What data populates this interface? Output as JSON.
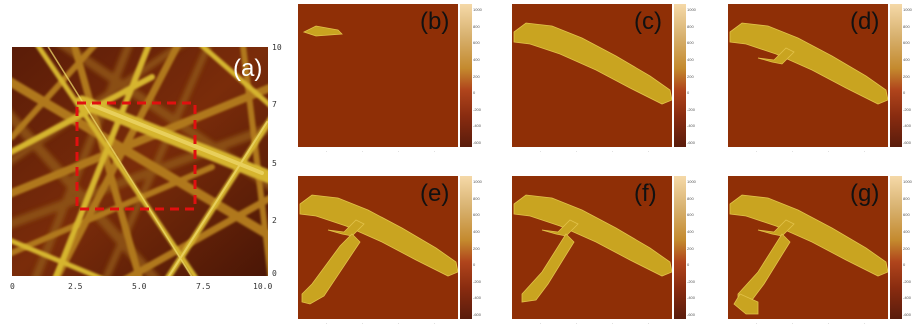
{
  "panel_a": {
    "label": "(a)",
    "x_ticks": [
      "0",
      "2.5",
      "5.0",
      "7.5",
      "10.0"
    ],
    "y_ticks": [
      "10",
      "7",
      "5",
      "2",
      "0"
    ]
  },
  "panels": [
    {
      "id": "b",
      "label": "(b)",
      "stage": 0
    },
    {
      "id": "c",
      "label": "(c)",
      "stage": 1
    },
    {
      "id": "d",
      "label": "(d)",
      "stage": 2
    },
    {
      "id": "e",
      "label": "(e)",
      "stage": 3
    },
    {
      "id": "f",
      "label": "(f)",
      "stage": 4
    },
    {
      "id": "g",
      "label": "(g)",
      "stage": 5
    }
  ],
  "colorbar_ticks": [
    "1000",
    "800",
    "600",
    "400",
    "200",
    "0",
    "-200",
    "-400",
    "-600"
  ],
  "colors": {
    "background": "#8f2f06",
    "fiber": "#c9a420",
    "fiber_edge": "#e2c24a",
    "roi_box": "#e01010"
  }
}
